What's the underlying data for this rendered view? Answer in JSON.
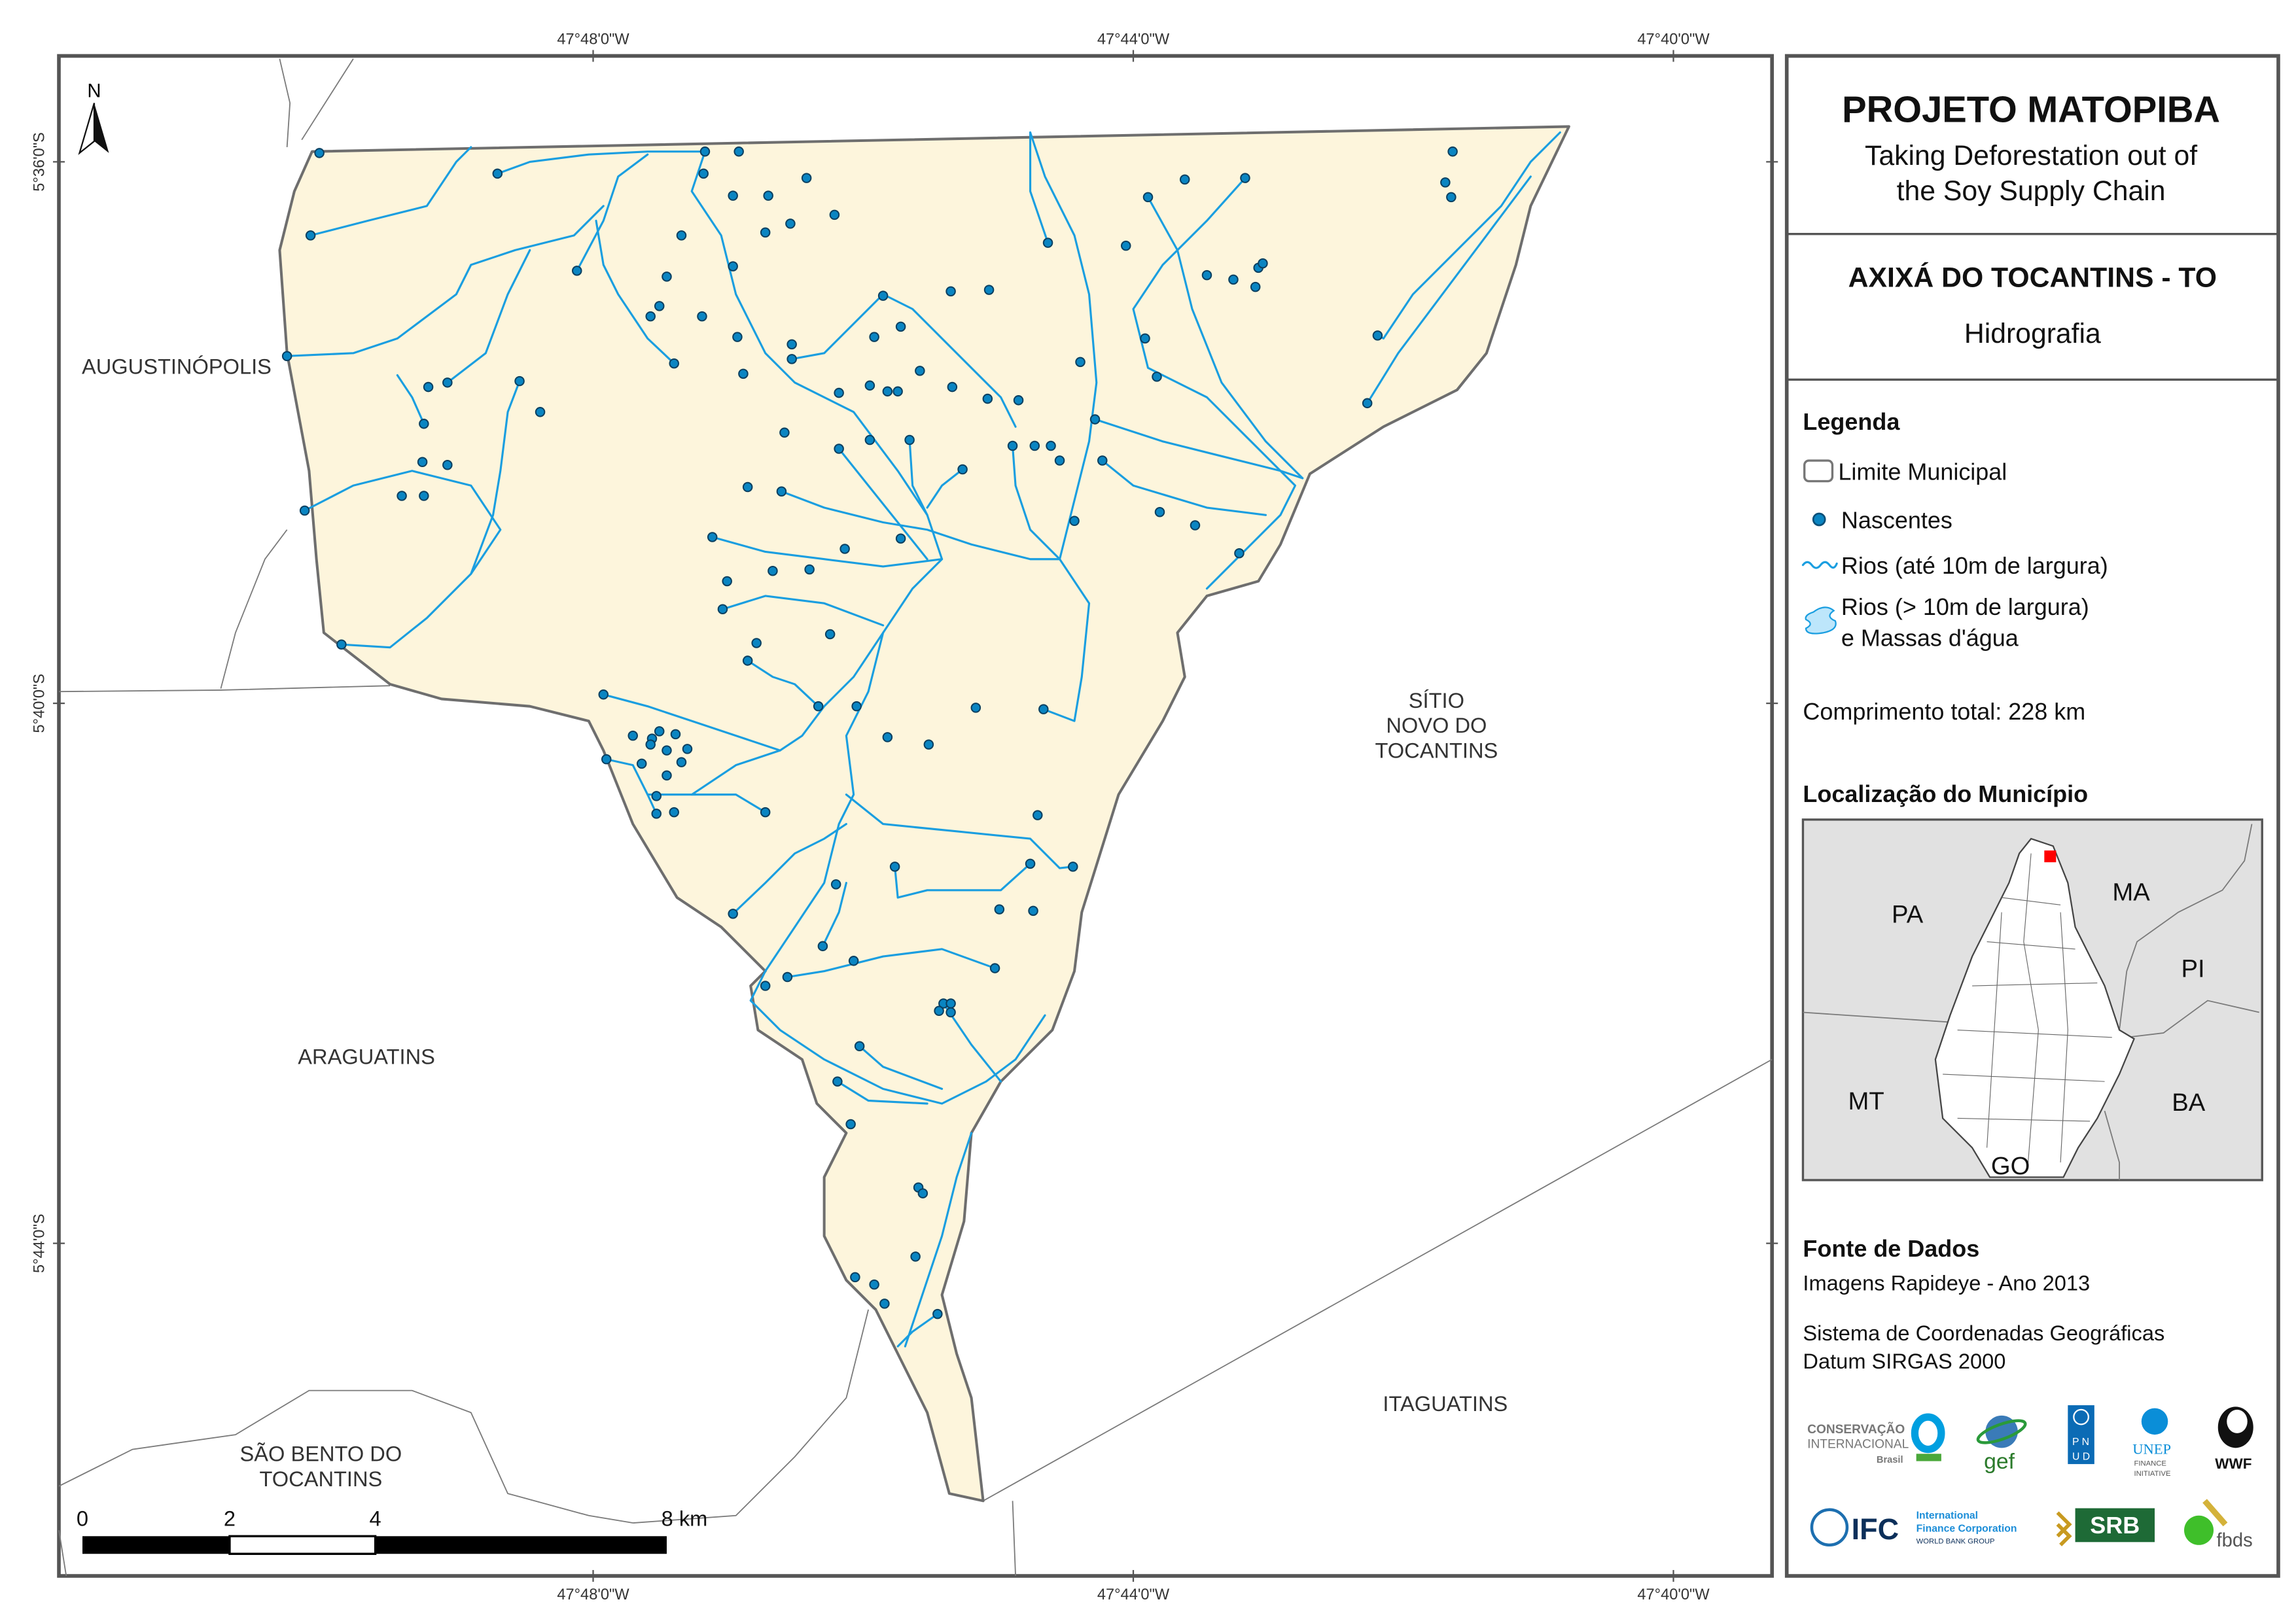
{
  "map": {
    "graticule": {
      "lon": [
        "47°48'0\"W",
        "47°44'0\"W",
        "47°40'0\"W"
      ],
      "lat": [
        "5°36'0\"S",
        "5°40'0\"S",
        "5°44'0\"S"
      ]
    },
    "north_label": "N",
    "places": {
      "augustinopolis": "AUGUSTINÓPOLIS",
      "sitio_novo": [
        "SÍTIO",
        "NOVO DO",
        "TOCANTINS"
      ],
      "araguatins": "ARAGUATINS",
      "itaguatins": "ITAGUATINS",
      "sao_bento": [
        "SÃO BENTO DO",
        "TOCANTINS"
      ]
    },
    "scale_bar": {
      "labels": [
        "0",
        "2",
        "4",
        "8 km"
      ]
    },
    "colors": {
      "municipality_fill": "#fdf5dc",
      "river": "#1a9ee0",
      "spring": "#0a85c2",
      "boundary": "#6e6e6e"
    }
  },
  "panel": {
    "title": "PROJETO MATOPIBA",
    "subtitle": [
      "Taking Deforestation out of",
      "the Soy Supply Chain"
    ],
    "municipality": "AXIXÁ DO TOCANTINS - TO",
    "theme": "Hidrografia",
    "legend": {
      "title": "Legenda",
      "items": [
        "Limite Municipal",
        "Nascentes",
        "Rios (até 10m de largura)",
        "Rios (> 10m de largura)",
        "e Massas d'água"
      ],
      "total_length": "Comprimento total:  228 km"
    },
    "location": {
      "title": "Localização do Município",
      "states": [
        "PA",
        "MA",
        "PI",
        "MT",
        "BA",
        "GO"
      ],
      "highlight_color": "#ff0000"
    },
    "sources": {
      "title": "Fonte de Dados",
      "lines": [
        "Imagens Rapideye - Ano 2013",
        "Sistema de Coordenadas Geográficas",
        "Datum SIRGAS 2000"
      ]
    },
    "logos": [
      "CONSERVAÇÃO INTERNACIONAL Brasil",
      "gef",
      "PNUD",
      "UNEP FINANCE INITIATIVE",
      "WWF",
      "IFC International Finance Corporation WORLD BANK GROUP",
      "SRB SOCIEDADE RURAL BRASILEIRA",
      "fbds"
    ]
  }
}
